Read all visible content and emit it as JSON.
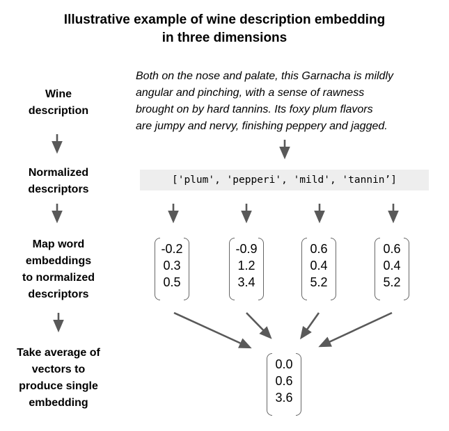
{
  "title": {
    "line1": "Illustrative example of wine description embedding",
    "line2": "in three dimensions"
  },
  "steps": [
    {
      "lines": [
        "Wine",
        "description"
      ]
    },
    {
      "lines": [
        "Normalized",
        "descriptors"
      ]
    },
    {
      "lines": [
        "Map word",
        "embeddings",
        "to normalized",
        "descriptors"
      ]
    },
    {
      "lines": [
        "Take average of",
        "vectors to",
        "produce single",
        "embedding"
      ]
    }
  ],
  "description": {
    "lines": [
      "Both on the nose and palate, this Garnacha is mildly",
      "angular and pinching, with a sense of rawness",
      "brought on by hard tannins. Its foxy plum flavors",
      "are jumpy and nervy, finishing peppery and jagged."
    ]
  },
  "descriptors_text": "['plum', 'pepperi', 'mild', 'tannin’]",
  "word_vectors": [
    [
      "-0.2",
      "0.3",
      "0.5"
    ],
    [
      "-0.9",
      "1.2",
      "3.4"
    ],
    [
      "0.6",
      "0.4",
      "5.2"
    ],
    [
      "0.6",
      "0.4",
      "5.2"
    ]
  ],
  "average_vector": [
    "0.0",
    "0.6",
    "3.6"
  ],
  "colors": {
    "arrow": "#595959",
    "bracket": "#666666",
    "code_bg": "#eeeeee"
  }
}
